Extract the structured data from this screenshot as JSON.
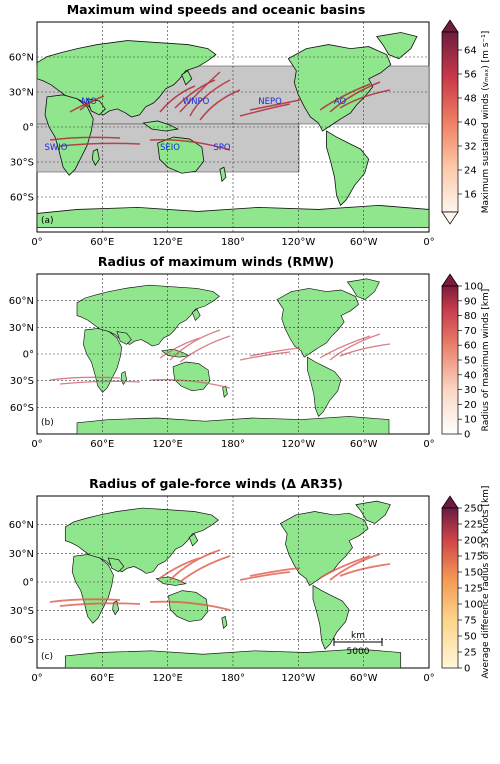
{
  "panels": [
    {
      "id": "a",
      "title": "Maximum wind speeds and oceanic basins",
      "letter": "(a)",
      "colorbar": {
        "label": "Maximum sustained winds (vₘₐₓ) [m s⁻¹]",
        "ticks": [
          "16",
          "24",
          "32",
          "40",
          "48",
          "56",
          "64"
        ],
        "tick_values": [
          16,
          24,
          32,
          40,
          48,
          56,
          64
        ],
        "range": [
          10,
          70
        ],
        "extend": "both"
      },
      "basins": [
        "NIO",
        "WNPO",
        "NEPO",
        "AO",
        "SWIO",
        "SEIO",
        "SPO"
      ]
    },
    {
      "id": "b",
      "title": "Radius of maximum winds (RMW)",
      "letter": "(b)",
      "colorbar": {
        "label": "Radius of maximum winds [km]",
        "ticks": [
          "0",
          "10",
          "20",
          "30",
          "40",
          "50",
          "60",
          "70",
          "80",
          "90",
          "100"
        ],
        "tick_values": [
          0,
          10,
          20,
          30,
          40,
          50,
          60,
          70,
          80,
          90,
          100
        ],
        "range": [
          0,
          100
        ],
        "extend": "max"
      }
    },
    {
      "id": "c",
      "title": "Radius of gale-force winds (Δ AR35)",
      "letter": "(c)",
      "colorbar": {
        "label": "Average difference radius of 35 knots [km]",
        "ticks": [
          "0",
          "25",
          "50",
          "75",
          "100",
          "125",
          "150",
          "175",
          "200",
          "225",
          "250"
        ],
        "tick_values": [
          0,
          25,
          50,
          75,
          100,
          125,
          150,
          175,
          200,
          225,
          250
        ],
        "range": [
          0,
          250
        ],
        "extend": "max"
      },
      "scalebar": {
        "unit": "km",
        "value": "5000"
      }
    }
  ],
  "axes": {
    "x_ticks": [
      "0°",
      "60°E",
      "120°E",
      "180°",
      "120°W",
      "60°W",
      "0°"
    ],
    "y_ticks": [
      "60°N",
      "30°N",
      "0°",
      "30°S",
      "60°S"
    ]
  },
  "colors": {
    "land": "#8fe68d",
    "ocean": "#ffffff",
    "basin_shade": "#c7c7c7",
    "basin_label": "#1a2bd8",
    "track_dark": "#8e1838",
    "track_light": "#f4b56a"
  }
}
